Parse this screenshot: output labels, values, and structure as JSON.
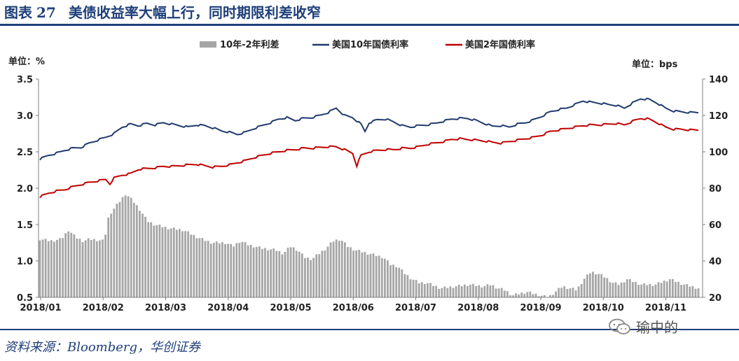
{
  "header": {
    "figure_label": "图表",
    "figure_number": "27",
    "title": "美债收益率大幅上行，同时期限利差收窄"
  },
  "footer": {
    "source": "资料来源：Bloomberg，华创证券",
    "watermark_text": "瑜中的",
    "watermark_icon": "wechat-icon"
  },
  "colors": {
    "series_10y": "#1f3a6e",
    "series_2y": "#c00000",
    "series_spread": "#a6a6a6",
    "accent": "#1f3f7a"
  },
  "chart_data": {
    "type": "line",
    "title": "",
    "left_axis": {
      "unit_label": "单位：%",
      "ylim": [
        0.5,
        3.5
      ],
      "ticks": [
        0.5,
        1.0,
        1.5,
        2.0,
        2.5,
        3.0,
        3.5
      ],
      "tick_labels": [
        "0.5",
        "1.0",
        "1.5",
        "2.0",
        "2.5",
        "3.0",
        "3.5"
      ]
    },
    "right_axis": {
      "unit_label": "单位：bps",
      "ylim": [
        20,
        140
      ],
      "ticks": [
        20,
        40,
        60,
        80,
        100,
        120,
        140
      ],
      "tick_labels": [
        "20",
        "40",
        "60",
        "80",
        "100",
        "120",
        "140"
      ]
    },
    "x_tick_labels": [
      "2018/01",
      "2018/02",
      "2018/03",
      "2018/04",
      "2018/05",
      "2018/06",
      "2018/07",
      "2018/08",
      "2018/09",
      "2018/10",
      "2018/11"
    ],
    "legend_position": "top-center",
    "grid": false,
    "series": [
      {
        "name": "10年-2年利差",
        "kind": "bar",
        "axis": "right",
        "anchors": [
          [
            0,
            52
          ],
          [
            1.5,
            51
          ],
          [
            3,
            52
          ],
          [
            4,
            57
          ],
          [
            5,
            53
          ],
          [
            6,
            51
          ],
          [
            7,
            52
          ],
          [
            9,
            51
          ],
          [
            9.5,
            63
          ],
          [
            10,
            67
          ],
          [
            11,
            72
          ],
          [
            12,
            77
          ],
          [
            13,
            73
          ],
          [
            14,
            68
          ],
          [
            15,
            62
          ],
          [
            16,
            60
          ],
          [
            18,
            58
          ],
          [
            20,
            57
          ],
          [
            22,
            53
          ],
          [
            24,
            50
          ],
          [
            26,
            50
          ],
          [
            27,
            48
          ],
          [
            28,
            51
          ],
          [
            29,
            49
          ],
          [
            30,
            48
          ],
          [
            31,
            47
          ],
          [
            33,
            46
          ],
          [
            34,
            44
          ],
          [
            35,
            48
          ],
          [
            36,
            46
          ],
          [
            37,
            42
          ],
          [
            38,
            41
          ],
          [
            40,
            47
          ],
          [
            41,
            51
          ],
          [
            42,
            52
          ],
          [
            43,
            48
          ],
          [
            44,
            46
          ],
          [
            46,
            44
          ],
          [
            48,
            42
          ],
          [
            49,
            38
          ],
          [
            50,
            37
          ],
          [
            51,
            33
          ],
          [
            52,
            30
          ],
          [
            53,
            28
          ],
          [
            54,
            28
          ],
          [
            56,
            25
          ],
          [
            58,
            26
          ],
          [
            60,
            27
          ],
          [
            62,
            26
          ],
          [
            63,
            27
          ],
          [
            64,
            25
          ],
          [
            65,
            24
          ],
          [
            66,
            21
          ],
          [
            67,
            22
          ],
          [
            68,
            23
          ],
          [
            69,
            22
          ],
          [
            70,
            21
          ],
          [
            71,
            20
          ],
          [
            72,
            23
          ],
          [
            73,
            26
          ],
          [
            74,
            25
          ],
          [
            75,
            24
          ],
          [
            76,
            30
          ],
          [
            77,
            34
          ],
          [
            78,
            33
          ],
          [
            79,
            31
          ],
          [
            80,
            28
          ],
          [
            81,
            27
          ],
          [
            82,
            30
          ],
          [
            84,
            27
          ],
          [
            86,
            27
          ],
          [
            88,
            30
          ],
          [
            90,
            27
          ],
          [
            92,
            25
          ]
        ]
      },
      {
        "name": "美国10年国债利率",
        "kind": "line",
        "axis": "left",
        "anchors": [
          [
            0,
            2.4
          ],
          [
            1,
            2.45
          ],
          [
            2,
            2.48
          ],
          [
            3,
            2.52
          ],
          [
            4,
            2.55
          ],
          [
            5,
            2.56
          ],
          [
            6,
            2.62
          ],
          [
            7,
            2.66
          ],
          [
            8,
            2.7
          ],
          [
            9,
            2.75
          ],
          [
            10,
            2.84
          ],
          [
            11,
            2.88
          ],
          [
            12,
            2.86
          ],
          [
            13,
            2.89
          ],
          [
            14,
            2.87
          ],
          [
            15,
            2.9
          ],
          [
            16,
            2.88
          ],
          [
            17,
            2.86
          ],
          [
            18,
            2.84
          ],
          [
            19,
            2.87
          ],
          [
            20,
            2.86
          ],
          [
            21,
            2.83
          ],
          [
            22,
            2.79
          ],
          [
            23,
            2.77
          ],
          [
            24,
            2.74
          ],
          [
            25,
            2.77
          ],
          [
            26,
            2.82
          ],
          [
            27,
            2.86
          ],
          [
            28,
            2.9
          ],
          [
            29,
            2.95
          ],
          [
            30,
            2.97
          ],
          [
            31,
            2.93
          ],
          [
            32,
            2.96
          ],
          [
            33,
            2.97
          ],
          [
            34,
            3.0
          ],
          [
            35,
            3.04
          ],
          [
            36,
            3.1
          ],
          [
            37,
            3.0
          ],
          [
            38,
            2.97
          ],
          [
            39,
            2.88
          ],
          [
            39.5,
            2.78
          ],
          [
            40,
            2.9
          ],
          [
            41,
            2.94
          ],
          [
            42,
            2.95
          ],
          [
            43,
            2.91
          ],
          [
            44,
            2.86
          ],
          [
            45,
            2.84
          ],
          [
            46,
            2.86
          ],
          [
            47,
            2.87
          ],
          [
            48,
            2.89
          ],
          [
            49,
            2.92
          ],
          [
            50,
            2.95
          ],
          [
            51,
            2.96
          ],
          [
            52,
            2.96
          ],
          [
            53,
            2.93
          ],
          [
            54,
            2.89
          ],
          [
            55,
            2.85
          ],
          [
            56,
            2.86
          ],
          [
            57,
            2.84
          ],
          [
            58,
            2.88
          ],
          [
            59,
            2.9
          ],
          [
            60,
            2.94
          ],
          [
            61,
            2.99
          ],
          [
            62,
            3.05
          ],
          [
            63,
            3.08
          ],
          [
            64,
            3.1
          ],
          [
            65,
            3.15
          ],
          [
            66,
            3.2
          ],
          [
            67,
            3.18
          ],
          [
            68,
            3.17
          ],
          [
            69,
            3.15
          ],
          [
            70,
            3.14
          ],
          [
            71,
            3.1
          ],
          [
            72,
            3.17
          ],
          [
            73,
            3.23
          ],
          [
            74,
            3.22
          ],
          [
            75,
            3.17
          ],
          [
            76,
            3.1
          ],
          [
            77,
            3.06
          ],
          [
            78,
            3.05
          ],
          [
            79,
            3.04
          ],
          [
            80,
            3.04
          ]
        ]
      },
      {
        "name": "美国2年国债利率",
        "kind": "line",
        "axis": "left",
        "anchors": [
          [
            0,
            1.88
          ],
          [
            1,
            1.93
          ],
          [
            2,
            1.96
          ],
          [
            3,
            1.98
          ],
          [
            4,
            2.02
          ],
          [
            5,
            2.05
          ],
          [
            6,
            2.08
          ],
          [
            7,
            2.1
          ],
          [
            8,
            2.12
          ],
          [
            8.5,
            2.06
          ],
          [
            9,
            2.14
          ],
          [
            10,
            2.18
          ],
          [
            11,
            2.2
          ],
          [
            12,
            2.26
          ],
          [
            13,
            2.27
          ],
          [
            14,
            2.28
          ],
          [
            15,
            2.3
          ],
          [
            16,
            2.3
          ],
          [
            17,
            2.31
          ],
          [
            18,
            2.32
          ],
          [
            19,
            2.33
          ],
          [
            20,
            2.31
          ],
          [
            21,
            2.29
          ],
          [
            22,
            2.3
          ],
          [
            23,
            2.32
          ],
          [
            24,
            2.35
          ],
          [
            25,
            2.38
          ],
          [
            26,
            2.42
          ],
          [
            27,
            2.45
          ],
          [
            28,
            2.48
          ],
          [
            29,
            2.5
          ],
          [
            30,
            2.52
          ],
          [
            31,
            2.53
          ],
          [
            32,
            2.55
          ],
          [
            33,
            2.55
          ],
          [
            34,
            2.56
          ],
          [
            35,
            2.57
          ],
          [
            36,
            2.57
          ],
          [
            37,
            2.53
          ],
          [
            38,
            2.48
          ],
          [
            38.5,
            2.31
          ],
          [
            39,
            2.45
          ],
          [
            40,
            2.5
          ],
          [
            41,
            2.52
          ],
          [
            42,
            2.53
          ],
          [
            43,
            2.53
          ],
          [
            44,
            2.55
          ],
          [
            45,
            2.55
          ],
          [
            46,
            2.57
          ],
          [
            47,
            2.6
          ],
          [
            48,
            2.62
          ],
          [
            49,
            2.64
          ],
          [
            50,
            2.67
          ],
          [
            51,
            2.68
          ],
          [
            52,
            2.67
          ],
          [
            53,
            2.66
          ],
          [
            54,
            2.65
          ],
          [
            55,
            2.63
          ],
          [
            56,
            2.62
          ],
          [
            57,
            2.64
          ],
          [
            58,
            2.66
          ],
          [
            59,
            2.68
          ],
          [
            60,
            2.7
          ],
          [
            61,
            2.73
          ],
          [
            62,
            2.78
          ],
          [
            63,
            2.8
          ],
          [
            64,
            2.82
          ],
          [
            65,
            2.84
          ],
          [
            66,
            2.86
          ],
          [
            67,
            2.87
          ],
          [
            68,
            2.87
          ],
          [
            69,
            2.88
          ],
          [
            70,
            2.89
          ],
          [
            71,
            2.87
          ],
          [
            72,
            2.92
          ],
          [
            73,
            2.96
          ],
          [
            74,
            2.95
          ],
          [
            75,
            2.9
          ],
          [
            76,
            2.84
          ],
          [
            77,
            2.81
          ],
          [
            78,
            2.81
          ],
          [
            79,
            2.8
          ],
          [
            80,
            2.8
          ]
        ]
      }
    ]
  }
}
